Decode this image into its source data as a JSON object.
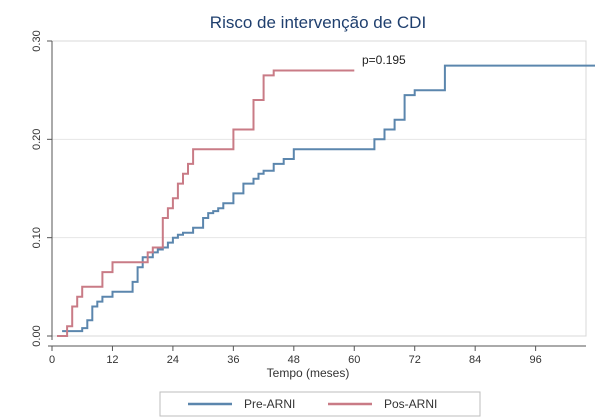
{
  "chart_data": {
    "type": "line",
    "title": "Risco de intervenção de CDI",
    "xlabel": "Tempo (meses)",
    "ylabel": "",
    "xlim": [
      0,
      106
    ],
    "ylim": [
      0,
      0.3
    ],
    "x_ticks": [
      "0",
      "12",
      "24",
      "36",
      "48",
      "60",
      "72",
      "84",
      "96"
    ],
    "y_ticks": [
      "0.00",
      "0.10",
      "0.20",
      "0.30"
    ],
    "grid": true,
    "legend_position": "bottom",
    "annotation": "p=0.195",
    "series": [
      {
        "name": "Pre-ARNI",
        "color": "#5b86ad",
        "step": true,
        "x": [
          2,
          6,
          7,
          8,
          9,
          10,
          12,
          16,
          17,
          18,
          20,
          21,
          22,
          23,
          24,
          25,
          26,
          28,
          30,
          31,
          32,
          33,
          34,
          36,
          38,
          40,
          41,
          42,
          44,
          46,
          48,
          58,
          64,
          66,
          68,
          70,
          72,
          78,
          108
        ],
        "y": [
          0.005,
          0.008,
          0.016,
          0.03,
          0.035,
          0.04,
          0.045,
          0.055,
          0.07,
          0.08,
          0.085,
          0.088,
          0.09,
          0.095,
          0.1,
          0.103,
          0.105,
          0.11,
          0.12,
          0.125,
          0.127,
          0.13,
          0.135,
          0.145,
          0.155,
          0.16,
          0.165,
          0.168,
          0.175,
          0.18,
          0.19,
          0.19,
          0.2,
          0.21,
          0.22,
          0.245,
          0.25,
          0.275,
          0.275
        ]
      },
      {
        "name": "Pos-ARNI",
        "color": "#c97b86",
        "step": true,
        "x": [
          1,
          3,
          4,
          5,
          6,
          10,
          12,
          16,
          19,
          20,
          22,
          23,
          24,
          25,
          26,
          27,
          28,
          34,
          36,
          40,
          42,
          44,
          60
        ],
        "y": [
          0.0,
          0.01,
          0.03,
          0.04,
          0.05,
          0.065,
          0.075,
          0.075,
          0.085,
          0.09,
          0.12,
          0.13,
          0.14,
          0.155,
          0.165,
          0.175,
          0.19,
          0.19,
          0.21,
          0.24,
          0.265,
          0.27,
          0.27
        ]
      }
    ]
  }
}
